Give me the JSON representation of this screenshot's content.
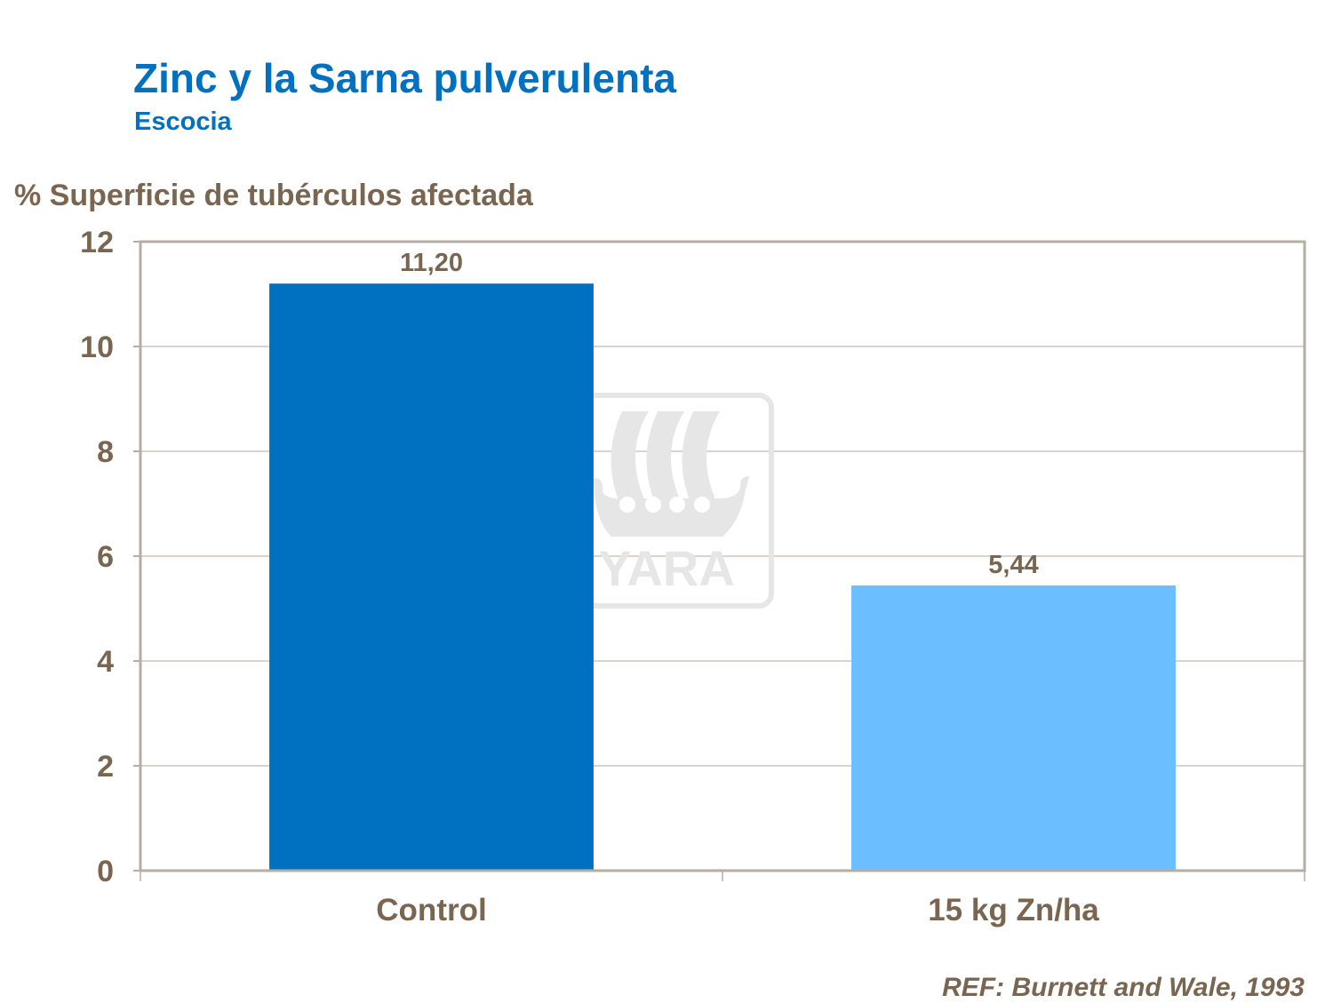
{
  "chart_data": {
    "type": "bar",
    "title": "Zinc y la Sarna pulverulenta",
    "subtitle": "Escocia",
    "ylabel": "% Superficie de tubérculos afectada",
    "xlabel": "",
    "categories": [
      "Control",
      "15 kg Zn/ha"
    ],
    "values": [
      11.2,
      5.44
    ],
    "data_labels": [
      "11,20",
      "5,44"
    ],
    "bar_colors": [
      "#0070C0",
      "#6BBEFF"
    ],
    "ylim": [
      0,
      12
    ],
    "yticks": [
      0,
      2,
      4,
      6,
      8,
      10,
      12
    ],
    "grid": true,
    "legend": "none",
    "annotation": "REF: Burnett and Wale, 1993",
    "watermark": "YARA"
  },
  "colors": {
    "title": "#0070C0",
    "text": "#7A6650",
    "axis": "#B8ADA2",
    "grid": "#B3A89B"
  }
}
